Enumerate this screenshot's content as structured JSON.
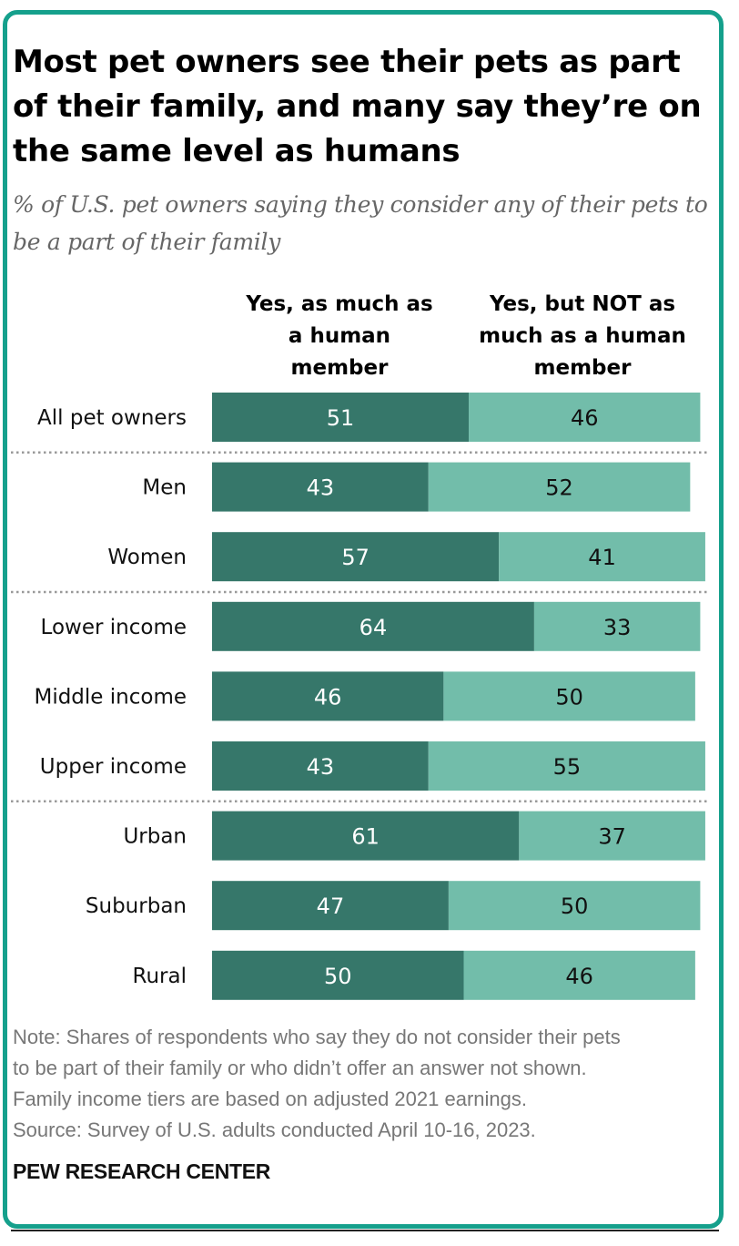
{
  "title": "Most pet owners see their pets as part of their family, and many say they’re on the same level as humans",
  "subtitle": "% of U.S. pet owners saying they consider any of their pets to be a part of their family",
  "columns": [
    "Yes, as much as a human member",
    "Yes, but NOT as much as a human member"
  ],
  "colors": {
    "dark": "#36776a",
    "light": "#72bdaa",
    "frame": "#15a08c"
  },
  "chart_data": {
    "type": "bar",
    "stacked": true,
    "orientation": "horizontal",
    "categories": [
      "All pet owners",
      "Men",
      "Women",
      "Lower income",
      "Middle income",
      "Upper income",
      "Urban",
      "Suburban",
      "Rural"
    ],
    "series": [
      {
        "name": "Yes, as much as a human member",
        "values": [
          51,
          43,
          57,
          64,
          46,
          43,
          61,
          47,
          50
        ]
      },
      {
        "name": "Yes, but NOT as much as a human member",
        "values": [
          46,
          52,
          41,
          33,
          50,
          55,
          37,
          50,
          46
        ]
      }
    ],
    "xlim": [
      0,
      100
    ],
    "group_separators_after": [
      "All pet owners",
      "Women",
      "Upper income"
    ]
  },
  "notes": [
    "Note: Shares of respondents who say they do not consider their pets",
    "to be part of their family or who didn’t offer an answer not shown.",
    "Family income tiers are based on adjusted 2021 earnings.",
    "Source: Survey of U.S. adults conducted April 10-16, 2023."
  ],
  "source_brand": "PEW RESEARCH CENTER"
}
